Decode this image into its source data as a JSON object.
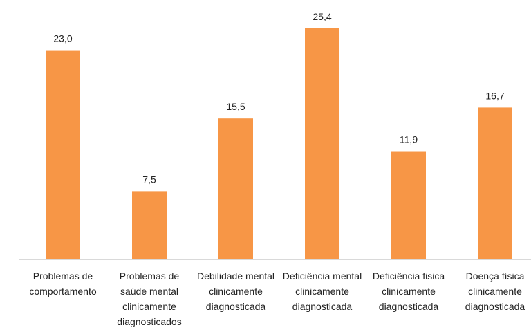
{
  "chart_data": {
    "type": "bar",
    "categories": [
      "Problemas de comportamento",
      "Problemas de saúde mental clinicamente diagnosticados",
      "Debilidade mental clinicamente diagnosticada",
      "Deficiência mental clinicamente diagnosticada",
      "Deficiência fisica clinicamente diagnosticada",
      "Doença física clinicamente diagnosticada"
    ],
    "values": [
      23.0,
      7.5,
      15.5,
      25.4,
      11.9,
      16.7
    ],
    "value_labels": [
      "23,0",
      "7,5",
      "15,5",
      "25,4",
      "11,9",
      "16,7"
    ],
    "color": "#f79646"
  }
}
